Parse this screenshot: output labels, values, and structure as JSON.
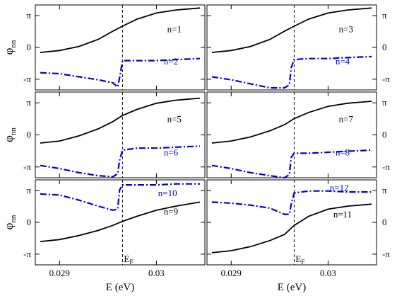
{
  "colors": {
    "black_series": "#000000",
    "blue_series": "#0000cc",
    "frame": "#000000",
    "fermi_line": "#000000"
  },
  "chart_data": {
    "type": "line",
    "layout": "3x2 grid of panels sharing x-axis",
    "xlabel": "E (eV)",
    "ylabel": "φ",
    "ylabel_sub": "nn",
    "xlim": [
      0.02875,
      0.0305
    ],
    "ylim": [
      -4.2,
      4.2
    ],
    "xticks": [
      {
        "v": 0.029,
        "label": "0.029"
      },
      {
        "v": 0.03,
        "label": "0.03"
      }
    ],
    "yticks": [
      {
        "v": 3.14159,
        "label": "π"
      },
      {
        "v": 0,
        "label": "0"
      },
      {
        "v": -3.14159,
        "label": "-π"
      }
    ],
    "fermi_energy": 0.02965,
    "fermi_label": "E",
    "fermi_label_sub": "F",
    "panels": [
      {
        "row": 0,
        "col": 0,
        "series": [
          {
            "name": "n=1",
            "style": "solid",
            "x": [
              0.0288,
              0.029,
              0.0292,
              0.0294,
              0.02955,
              0.02965,
              0.0298,
              0.03,
              0.0302,
              0.03045
            ],
            "y": [
              -0.5,
              -0.3,
              0.1,
              0.8,
              1.6,
              2.1,
              2.8,
              3.4,
              3.7,
              3.9
            ]
          },
          {
            "name": "n=2",
            "style": "dashdot",
            "x": [
              0.0288,
              0.029,
              0.0292,
              0.0294,
              0.02955,
              0.0296,
              0.02962,
              0.02965,
              0.0298,
              0.03,
              0.0302,
              0.03045
            ],
            "y": [
              -2.5,
              -2.6,
              -2.9,
              -3.2,
              -3.5,
              -3.9,
              -3.0,
              -1.3,
              -1.3,
              -1.3,
              -1.2,
              -1.1
            ]
          }
        ]
      },
      {
        "row": 0,
        "col": 1,
        "series": [
          {
            "name": "n=3",
            "style": "solid",
            "x": [
              0.0288,
              0.029,
              0.0292,
              0.0294,
              0.02955,
              0.02965,
              0.0298,
              0.03,
              0.0302,
              0.03045
            ],
            "y": [
              -0.5,
              -0.3,
              0.1,
              0.8,
              1.6,
              2.1,
              2.8,
              3.4,
              3.7,
              3.9
            ]
          },
          {
            "name": "n=4",
            "style": "dashdot",
            "x": [
              0.0288,
              0.029,
              0.0292,
              0.0294,
              0.02955,
              0.0296,
              0.02962,
              0.02965,
              0.0298,
              0.03,
              0.0302,
              0.03045
            ],
            "y": [
              -2.9,
              -3.2,
              -3.6,
              -4.0,
              -4.0,
              -3.7,
              -2.0,
              -1.2,
              -1.1,
              -1.1,
              -1.0,
              -0.9
            ]
          }
        ]
      },
      {
        "row": 1,
        "col": 0,
        "series": [
          {
            "name": "n=5",
            "style": "solid",
            "x": [
              0.0288,
              0.029,
              0.0292,
              0.0294,
              0.02955,
              0.02965,
              0.0298,
              0.03,
              0.0302,
              0.03045
            ],
            "y": [
              -0.8,
              -0.6,
              -0.1,
              0.6,
              1.3,
              1.9,
              2.5,
              3.1,
              3.4,
              3.6
            ]
          },
          {
            "name": "n=6",
            "style": "dashdot",
            "x": [
              0.0288,
              0.029,
              0.0292,
              0.0294,
              0.02955,
              0.0296,
              0.02962,
              0.02965,
              0.0298,
              0.03,
              0.0302,
              0.03045
            ],
            "y": [
              -3.0,
              -3.3,
              -3.7,
              -4.0,
              -4.1,
              -3.8,
              -2.5,
              -1.5,
              -1.3,
              -1.3,
              -1.2,
              -1.1
            ]
          }
        ]
      },
      {
        "row": 1,
        "col": 1,
        "series": [
          {
            "name": "n=7",
            "style": "solid",
            "x": [
              0.0288,
              0.029,
              0.0292,
              0.0294,
              0.02955,
              0.02965,
              0.0298,
              0.03,
              0.0302,
              0.03045
            ],
            "y": [
              -0.8,
              -0.6,
              -0.2,
              0.4,
              1.0,
              1.6,
              2.2,
              2.8,
              3.1,
              3.3
            ]
          },
          {
            "name": "n=8",
            "style": "dashdot",
            "x": [
              0.0288,
              0.029,
              0.0292,
              0.0294,
              0.02955,
              0.0296,
              0.02962,
              0.02965,
              0.0298,
              0.03,
              0.0302,
              0.03045
            ],
            "y": [
              -3.0,
              -3.3,
              -3.7,
              -4.0,
              -4.2,
              -3.9,
              -2.2,
              -1.8,
              -1.8,
              -1.7,
              -1.6,
              -1.5
            ]
          }
        ]
      },
      {
        "row": 2,
        "col": 0,
        "series": [
          {
            "name": "n=9",
            "style": "solid",
            "x": [
              0.0288,
              0.029,
              0.0292,
              0.0294,
              0.02955,
              0.02965,
              0.0298,
              0.03,
              0.0302,
              0.03045
            ],
            "y": [
              -1.9,
              -1.7,
              -1.3,
              -0.8,
              -0.3,
              0.1,
              0.6,
              1.2,
              1.6,
              2.0
            ]
          },
          {
            "name": "n=10",
            "style": "dashdot",
            "x": [
              0.0288,
              0.029,
              0.0292,
              0.0294,
              0.02955,
              0.0296,
              0.02962,
              0.02965,
              0.0298,
              0.03,
              0.0302,
              0.03045
            ],
            "y": [
              2.8,
              2.7,
              2.2,
              1.6,
              1.2,
              1.3,
              3.2,
              3.7,
              3.7,
              3.7,
              3.8,
              3.8
            ]
          }
        ]
      },
      {
        "row": 2,
        "col": 1,
        "series": [
          {
            "name": "n=11",
            "style": "solid",
            "x": [
              0.0288,
              0.029,
              0.0292,
              0.0294,
              0.02955,
              0.02965,
              0.0298,
              0.03,
              0.0302,
              0.03045
            ],
            "y": [
              -3.0,
              -2.8,
              -2.4,
              -1.8,
              -1.2,
              -0.3,
              0.6,
              1.3,
              1.6,
              1.8
            ]
          },
          {
            "name": "n=12",
            "style": "dashdot",
            "x": [
              0.0288,
              0.029,
              0.0292,
              0.0294,
              0.02955,
              0.0296,
              0.02962,
              0.02965,
              0.0298,
              0.03,
              0.0302,
              0.03045
            ],
            "y": [
              2.0,
              1.9,
              1.7,
              1.4,
              0.8,
              0.8,
              1.8,
              2.9,
              3.1,
              3.1,
              3.0,
              3.0
            ]
          }
        ]
      }
    ],
    "series_label_positions": [
      {
        "text": "n=1",
        "color": "black"
      },
      {
        "text": "n=2",
        "color": "blue"
      },
      {
        "text": "n=3",
        "color": "black"
      },
      {
        "text": "n=4",
        "color": "blue"
      },
      {
        "text": "n=5",
        "color": "black"
      },
      {
        "text": "n=6",
        "color": "blue"
      },
      {
        "text": "n=7",
        "color": "black"
      },
      {
        "text": "n=8",
        "color": "blue"
      },
      {
        "text": "n=9",
        "color": "black"
      },
      {
        "text": "n=10",
        "color": "blue"
      },
      {
        "text": "n=11",
        "color": "black"
      },
      {
        "text": "n=12",
        "color": "blue"
      }
    ]
  }
}
